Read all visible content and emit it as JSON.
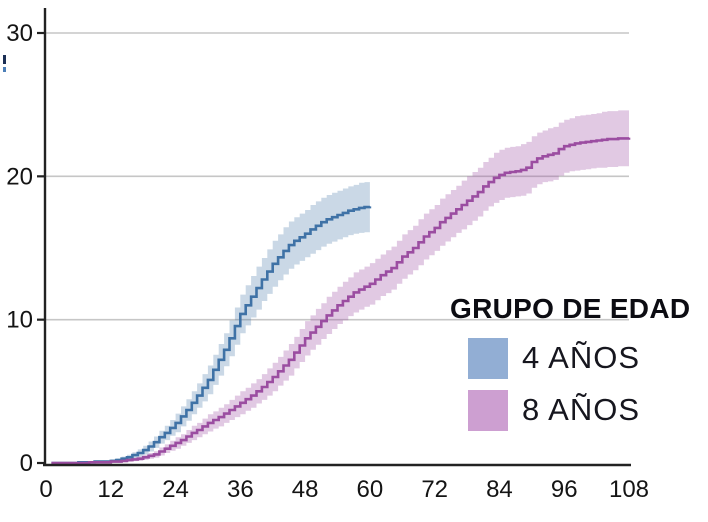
{
  "page": {
    "background": "#ffffff"
  },
  "legend": {
    "title": "GRUPO DE EDAD",
    "items": [
      {
        "label": "4 AÑOS",
        "color": "#92aed4"
      },
      {
        "label": "8 AÑOS",
        "color": "#cd9fd1"
      }
    ]
  },
  "chart_data": {
    "type": "line",
    "subtype": "step-cumulative-incidence-with-confidence-bands",
    "title": "",
    "xlabel": "",
    "ylabel": "",
    "x_axis": {
      "ticks": [
        0,
        12,
        24,
        36,
        48,
        60,
        72,
        84,
        96,
        108
      ],
      "range": [
        0,
        108
      ]
    },
    "y_axis": {
      "ticks": [
        0,
        10,
        20,
        30
      ],
      "range": [
        0,
        30
      ]
    },
    "grid": true,
    "legend_position": "right-middle",
    "colors": {
      "axis": "#222222",
      "grid": "#c6c6c6",
      "tick_text": "#141414"
    },
    "series": [
      {
        "name": "4 AÑOS",
        "line_color": "#3f72a6",
        "band_color": "rgba(63,114,166,0.28)",
        "points_format": [
          "month",
          "value",
          "ci_halfwidth"
        ],
        "points": [
          [
            1,
            0,
            0
          ],
          [
            6,
            0.05,
            0.05
          ],
          [
            9,
            0.1,
            0.08
          ],
          [
            12,
            0.15,
            0.1
          ],
          [
            13,
            0.2,
            0.12
          ],
          [
            14,
            0.3,
            0.15
          ],
          [
            15,
            0.4,
            0.18
          ],
          [
            16,
            0.55,
            0.2
          ],
          [
            17,
            0.7,
            0.25
          ],
          [
            18,
            0.9,
            0.3
          ],
          [
            19,
            1.15,
            0.35
          ],
          [
            20,
            1.45,
            0.4
          ],
          [
            21,
            1.8,
            0.45
          ],
          [
            22,
            2.1,
            0.5
          ],
          [
            23,
            2.45,
            0.55
          ],
          [
            24,
            2.8,
            0.65
          ],
          [
            25,
            3.25,
            0.7
          ],
          [
            26,
            3.7,
            0.75
          ],
          [
            27,
            4.2,
            0.8
          ],
          [
            28,
            4.7,
            0.85
          ],
          [
            29,
            5.25,
            0.95
          ],
          [
            30,
            5.8,
            1.0
          ],
          [
            31,
            6.5,
            1.05
          ],
          [
            32,
            7.2,
            1.1
          ],
          [
            33,
            7.9,
            1.15
          ],
          [
            34,
            8.7,
            1.25
          ],
          [
            35,
            9.55,
            1.3
          ],
          [
            36,
            10.4,
            1.35
          ],
          [
            37,
            11.0,
            1.4
          ],
          [
            38,
            11.6,
            1.45
          ],
          [
            39,
            12.2,
            1.5
          ],
          [
            40,
            12.8,
            1.5
          ],
          [
            41,
            13.35,
            1.55
          ],
          [
            42,
            13.9,
            1.6
          ],
          [
            43,
            14.35,
            1.6
          ],
          [
            44,
            14.8,
            1.65
          ],
          [
            45,
            15.2,
            1.65
          ],
          [
            46,
            15.5,
            1.65
          ],
          [
            47,
            15.75,
            1.65
          ],
          [
            48,
            16.0,
            1.65
          ],
          [
            49,
            16.3,
            1.7
          ],
          [
            50,
            16.55,
            1.7
          ],
          [
            51,
            16.8,
            1.7
          ],
          [
            52,
            17.0,
            1.7
          ],
          [
            53,
            17.15,
            1.7
          ],
          [
            54,
            17.3,
            1.7
          ],
          [
            55,
            17.45,
            1.7
          ],
          [
            56,
            17.6,
            1.7
          ],
          [
            57,
            17.7,
            1.7
          ],
          [
            58,
            17.8,
            1.75
          ],
          [
            59,
            17.85,
            1.75
          ],
          [
            60,
            17.9,
            1.75
          ]
        ]
      },
      {
        "name": "8 AÑOS",
        "line_color": "#9b4da1",
        "band_color": "rgba(155,77,161,0.30)",
        "points_format": [
          "month",
          "value",
          "ci_halfwidth"
        ],
        "points": [
          [
            1,
            0,
            0
          ],
          [
            8,
            0.05,
            0.05
          ],
          [
            12,
            0.1,
            0.08
          ],
          [
            14,
            0.15,
            0.1
          ],
          [
            15,
            0.2,
            0.1
          ],
          [
            16,
            0.25,
            0.12
          ],
          [
            17,
            0.3,
            0.15
          ],
          [
            18,
            0.4,
            0.18
          ],
          [
            19,
            0.5,
            0.2
          ],
          [
            20,
            0.6,
            0.22
          ],
          [
            21,
            0.8,
            0.28
          ],
          [
            22,
            1.0,
            0.3
          ],
          [
            23,
            1.2,
            0.35
          ],
          [
            24,
            1.4,
            0.4
          ],
          [
            25,
            1.6,
            0.4
          ],
          [
            26,
            1.85,
            0.45
          ],
          [
            27,
            2.1,
            0.5
          ],
          [
            28,
            2.3,
            0.5
          ],
          [
            29,
            2.55,
            0.55
          ],
          [
            30,
            2.8,
            0.6
          ],
          [
            31,
            3.0,
            0.6
          ],
          [
            32,
            3.2,
            0.65
          ],
          [
            33,
            3.45,
            0.65
          ],
          [
            34,
            3.7,
            0.7
          ],
          [
            35,
            3.95,
            0.75
          ],
          [
            36,
            4.2,
            0.8
          ],
          [
            37,
            4.45,
            0.8
          ],
          [
            38,
            4.7,
            0.85
          ],
          [
            39,
            5.0,
            0.85
          ],
          [
            40,
            5.3,
            0.9
          ],
          [
            41,
            5.65,
            0.95
          ],
          [
            42,
            6.0,
            1.0
          ],
          [
            43,
            6.4,
            1.0
          ],
          [
            44,
            6.8,
            1.05
          ],
          [
            45,
            7.2,
            1.1
          ],
          [
            46,
            7.7,
            1.1
          ],
          [
            47,
            8.2,
            1.15
          ],
          [
            48,
            8.7,
            1.2
          ],
          [
            49,
            9.1,
            1.2
          ],
          [
            50,
            9.5,
            1.25
          ],
          [
            51,
            9.9,
            1.25
          ],
          [
            52,
            10.3,
            1.3
          ],
          [
            53,
            10.65,
            1.3
          ],
          [
            54,
            11.0,
            1.3
          ],
          [
            55,
            11.3,
            1.35
          ],
          [
            56,
            11.6,
            1.35
          ],
          [
            57,
            11.9,
            1.4
          ],
          [
            58,
            12.1,
            1.4
          ],
          [
            59,
            12.3,
            1.4
          ],
          [
            60,
            12.5,
            1.45
          ],
          [
            61,
            12.8,
            1.45
          ],
          [
            62,
            13.1,
            1.45
          ],
          [
            63,
            13.35,
            1.5
          ],
          [
            64,
            13.6,
            1.5
          ],
          [
            65,
            14.0,
            1.5
          ],
          [
            66,
            14.4,
            1.55
          ],
          [
            67,
            14.7,
            1.55
          ],
          [
            68,
            15.0,
            1.55
          ],
          [
            69,
            15.4,
            1.6
          ],
          [
            70,
            15.8,
            1.6
          ],
          [
            71,
            16.1,
            1.6
          ],
          [
            72,
            16.4,
            1.6
          ],
          [
            73,
            16.8,
            1.65
          ],
          [
            74,
            17.1,
            1.65
          ],
          [
            75,
            17.4,
            1.65
          ],
          [
            76,
            17.7,
            1.65
          ],
          [
            77,
            18.0,
            1.7
          ],
          [
            78,
            18.3,
            1.7
          ],
          [
            79,
            18.6,
            1.7
          ],
          [
            80,
            18.9,
            1.7
          ],
          [
            81,
            19.3,
            1.7
          ],
          [
            82,
            19.6,
            1.7
          ],
          [
            83,
            19.9,
            1.75
          ],
          [
            84,
            20.1,
            1.75
          ],
          [
            85,
            20.25,
            1.75
          ],
          [
            86,
            20.3,
            1.75
          ],
          [
            87,
            20.35,
            1.75
          ],
          [
            88,
            20.45,
            1.8
          ],
          [
            89,
            20.6,
            1.8
          ],
          [
            90,
            21.0,
            1.8
          ],
          [
            91,
            21.25,
            1.8
          ],
          [
            92,
            21.4,
            1.8
          ],
          [
            93,
            21.5,
            1.85
          ],
          [
            94,
            21.6,
            1.85
          ],
          [
            95,
            21.9,
            1.85
          ],
          [
            96,
            22.1,
            1.85
          ],
          [
            97,
            22.2,
            1.85
          ],
          [
            98,
            22.3,
            1.9
          ],
          [
            99,
            22.35,
            1.9
          ],
          [
            100,
            22.4,
            1.9
          ],
          [
            101,
            22.45,
            1.9
          ],
          [
            102,
            22.5,
            1.9
          ],
          [
            103,
            22.55,
            1.95
          ],
          [
            104,
            22.6,
            1.95
          ],
          [
            106,
            22.65,
            1.95
          ],
          [
            108,
            22.7,
            1.95
          ]
        ]
      }
    ]
  }
}
